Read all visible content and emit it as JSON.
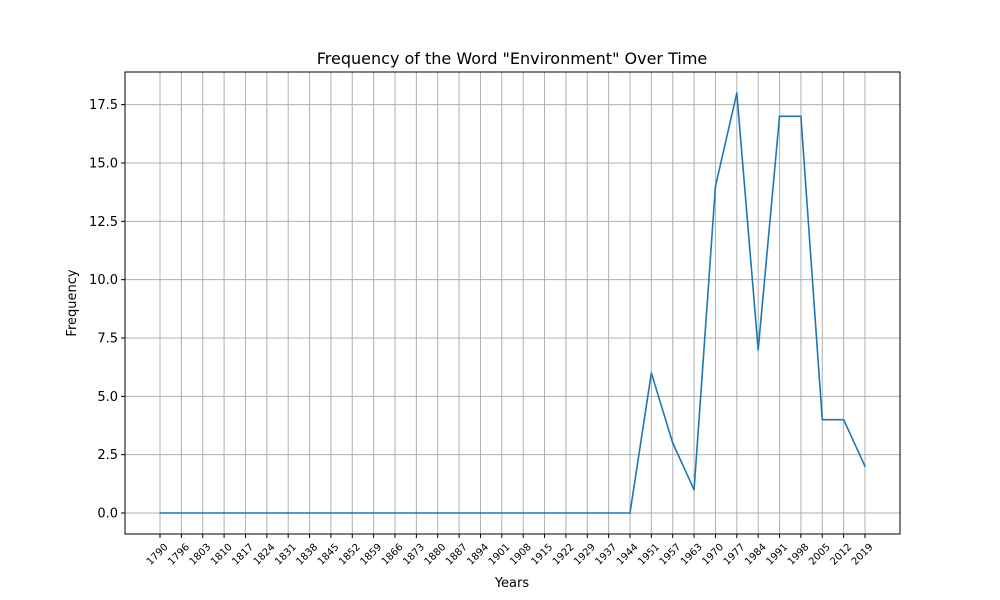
{
  "chart_data": {
    "type": "line",
    "title": "Frequency of the Word \"Environment\" Over Time",
    "xlabel": "Years",
    "ylabel": "Frequency",
    "ylim": [
      -0.9,
      18.9
    ],
    "yticks": [
      "0.0",
      "2.5",
      "5.0",
      "7.5",
      "10.0",
      "12.5",
      "15.0",
      "17.5"
    ],
    "ytick_values": [
      0,
      2.5,
      5,
      7.5,
      10,
      12.5,
      15,
      17.5
    ],
    "grid": true,
    "categories": [
      "1790",
      "1796",
      "1803",
      "1810",
      "1817",
      "1824",
      "1831",
      "1838",
      "1845",
      "1852",
      "1859",
      "1866",
      "1873",
      "1880",
      "1887",
      "1894",
      "1901",
      "1908",
      "1915",
      "1922",
      "1929",
      "1937",
      "1944",
      "1951",
      "1957",
      "1963",
      "1970",
      "1977",
      "1984",
      "1991",
      "1998",
      "2005",
      "2012",
      "2019"
    ],
    "series": [
      {
        "color": "#1f77b4",
        "values": [
          0,
          0,
          0,
          0,
          0,
          0,
          0,
          0,
          0,
          0,
          0,
          0,
          0,
          0,
          0,
          0,
          0,
          0,
          0,
          0,
          0,
          0,
          0,
          6,
          3,
          1,
          14,
          18,
          7,
          17,
          17,
          4,
          4,
          2
        ]
      }
    ]
  }
}
